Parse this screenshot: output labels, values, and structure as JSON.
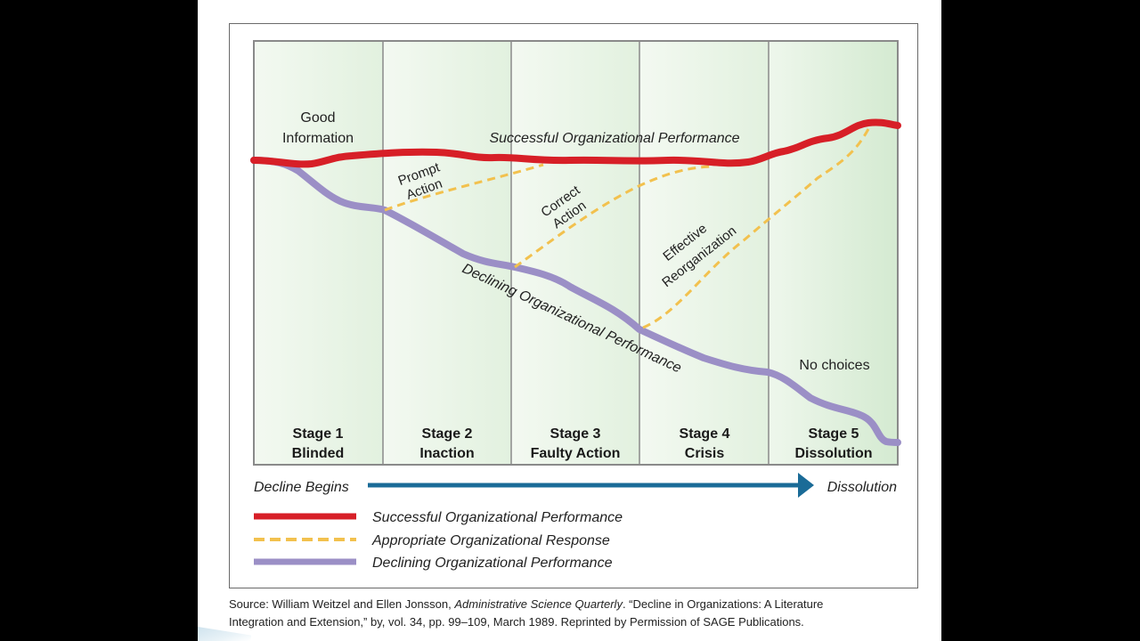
{
  "stages": [
    {
      "title": "Stage 1",
      "name": "Blinded"
    },
    {
      "title": "Stage 2",
      "name": "Inaction"
    },
    {
      "title": "Stage 3",
      "name": "Faulty Action"
    },
    {
      "title": "Stage 4",
      "name": "Crisis"
    },
    {
      "title": "Stage 5",
      "name": "Dissolution"
    }
  ],
  "annotations": {
    "good_info_line1": "Good",
    "good_info_line2": "Information",
    "successful_curve": "Successful Organizational Performance",
    "declining_curve": "Declining Organizational Performance",
    "prompt_line1": "Prompt",
    "prompt_line2": "Action",
    "correct_line1": "Correct",
    "correct_line2": "Action",
    "effective_line1": "Effective",
    "effective_line2": "Reorganization",
    "no_choices": "No choices"
  },
  "timeline": {
    "start": "Decline Begins",
    "end": "Dissolution"
  },
  "legend": [
    {
      "label": "Successful Organizational Performance",
      "color": "#d71f27",
      "style": "solid"
    },
    {
      "label": "Appropriate Organizational Response",
      "color": "#f2c14e",
      "style": "dashed"
    },
    {
      "label": "Declining Organizational Performance",
      "color": "#9b8fc6",
      "style": "solid"
    }
  ],
  "source": {
    "prefix": "Source: William Weitzel and Ellen Jonsson, ",
    "journal": "Administrative Science Quarterly",
    "rest_line1": ". “Decline in Organizations: A Literature",
    "line2": "Integration and Extension,” by, vol. 34, pp. 99–109, March 1989. Reprinted by Permission of SAGE Publications."
  },
  "colors": {
    "successful": "#d71f27",
    "response": "#f2c14e",
    "declining": "#9b8fc6",
    "arrow": "#1a6b97",
    "panel_light": "#f1f8ef",
    "panel_dark": "#d6ecd4"
  }
}
